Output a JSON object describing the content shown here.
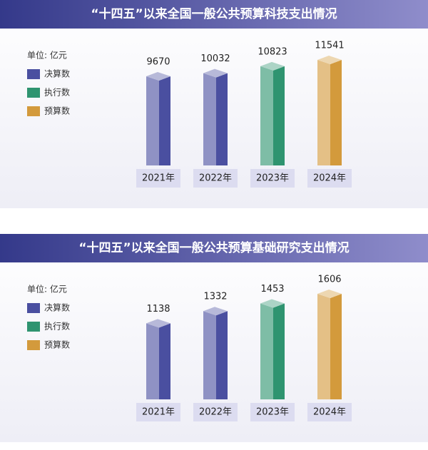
{
  "chart_data": [
    {
      "type": "bar",
      "title": "“十四五”以来全国一般公共预算科技支出情况",
      "unit": "单位: 亿元",
      "categories": [
        "2021年",
        "2022年",
        "2023年",
        "2024年"
      ],
      "series": [
        {
          "name": "决算数",
          "color": "#4a4fa0",
          "values": [
            9670,
            10032,
            null,
            null
          ]
        },
        {
          "name": "执行数",
          "color": "#2f9470",
          "values": [
            null,
            null,
            10823,
            null
          ]
        },
        {
          "name": "预算数",
          "color": "#d39a3c",
          "values": [
            null,
            null,
            null,
            11541
          ]
        }
      ]
    },
    {
      "type": "bar",
      "title": "“十四五”以来全国一般公共预算基础研究支出情况",
      "unit": "单位: 亿元",
      "categories": [
        "2021年",
        "2022年",
        "2023年",
        "2024年"
      ],
      "series": [
        {
          "name": "决算数",
          "color": "#4a4fa0",
          "values": [
            1138,
            1332,
            null,
            null
          ]
        },
        {
          "name": "执行数",
          "color": "#2f9470",
          "values": [
            null,
            null,
            1453,
            null
          ]
        },
        {
          "name": "预算数",
          "color": "#d39a3c",
          "values": [
            null,
            null,
            null,
            1606
          ]
        }
      ]
    }
  ]
}
